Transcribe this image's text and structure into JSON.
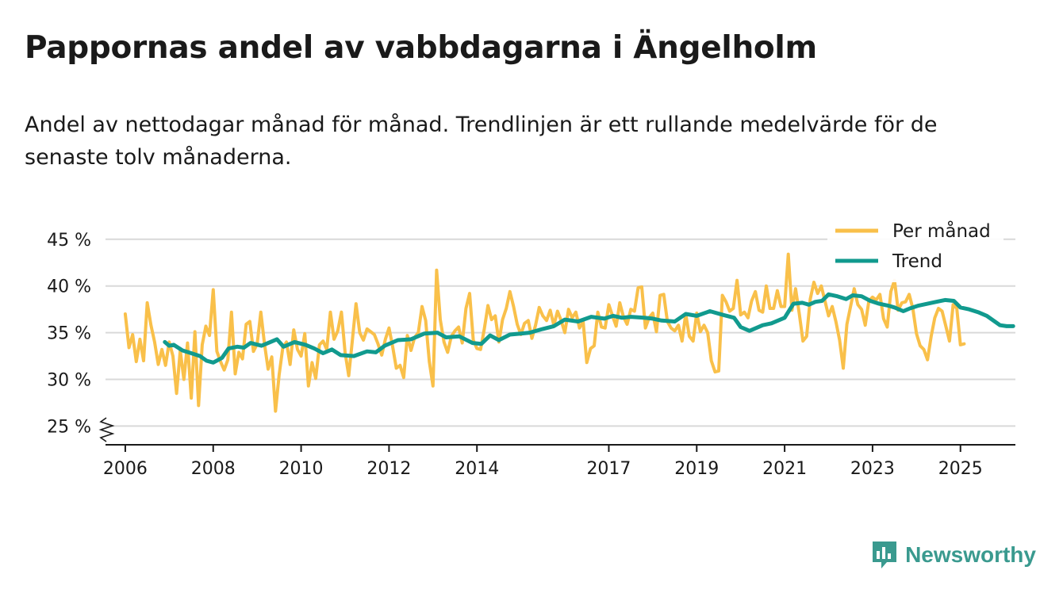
{
  "header": {
    "title": "Pappornas andel av vabbdagarna i Ängelholm",
    "subtitle": "Andel av nettodagar månad för månad. Trendlinjen är ett rullande medelvärde för de senaste tolv månaderna."
  },
  "brand": {
    "name": "Newsworthy",
    "icon": "newsworthy-logo-icon",
    "color": "#3a9a8f"
  },
  "colors": {
    "monthly": "#f9c04a",
    "trend": "#119a8e",
    "grid": "#d9d9d9",
    "axis": "#1a1a1a"
  },
  "chart_data": {
    "type": "line",
    "title": "Pappornas andel av vabbdagarna i Ängelholm",
    "ylabel": "",
    "xlabel": "",
    "ylim": [
      23,
      46
    ],
    "y_axis_break": true,
    "y_ticks": [
      25,
      30,
      35,
      40,
      45
    ],
    "y_tick_labels": [
      "25 %",
      "30 %",
      "35 %",
      "40 %",
      "45 %"
    ],
    "x_range": [
      2005.55,
      2026.25
    ],
    "x_ticks": [
      2006,
      2008,
      2010,
      2012,
      2014,
      2017,
      2019,
      2021,
      2023,
      2025
    ],
    "x_tick_labels": [
      "2006",
      "2008",
      "2010",
      "2012",
      "2014",
      "2017",
      "2019",
      "2021",
      "2023",
      "2025"
    ],
    "grid": "horizontal",
    "legend": {
      "position": "top-right",
      "entries": [
        "Per månad",
        "Trend"
      ]
    },
    "series": [
      {
        "name": "Per månad",
        "x_start": 2006.0,
        "x_step": 0.0833333,
        "values": [
          37.0,
          33.4,
          34.8,
          31.9,
          34.3,
          32.0,
          38.2,
          35.8,
          34.0,
          31.6,
          33.2,
          31.5,
          34.0,
          32.5,
          28.5,
          33.1,
          30.0,
          33.9,
          28.0,
          35.1,
          27.2,
          33.7,
          35.7,
          34.7,
          39.6,
          33.0,
          31.9,
          31.0,
          32.1,
          37.2,
          30.6,
          32.9,
          32.2,
          35.9,
          36.2,
          33.0,
          33.8,
          37.2,
          33.8,
          31.1,
          32.4,
          26.6,
          30.5,
          33.4,
          34.0,
          31.6,
          35.3,
          33.2,
          32.5,
          34.9,
          29.3,
          31.8,
          30.1,
          33.7,
          34.1,
          33.2,
          37.2,
          34.3,
          35.2,
          37.2,
          32.9,
          30.4,
          34.2,
          38.1,
          35.0,
          34.2,
          35.4,
          35.1,
          34.8,
          33.8,
          32.6,
          34.3,
          35.5,
          33.5,
          31.2,
          31.5,
          30.2,
          34.7,
          33.1,
          34.5,
          35.0,
          37.8,
          36.3,
          31.9,
          29.3,
          41.7,
          36.4,
          34.0,
          32.9,
          34.6,
          35.2,
          35.6,
          33.9,
          37.6,
          39.2,
          34.2,
          33.3,
          33.2,
          35.4,
          37.9,
          36.4,
          36.8,
          34.0,
          36.4,
          37.6,
          39.4,
          37.8,
          35.9,
          34.8,
          36.0,
          36.3,
          34.4,
          35.8,
          37.7,
          36.8,
          36.3,
          37.4,
          35.8,
          37.3,
          36.3,
          35.0,
          37.5,
          36.6,
          37.2,
          35.5,
          36.2,
          31.8,
          33.3,
          33.6,
          37.2,
          35.6,
          35.5,
          38.0,
          36.8,
          35.7,
          38.2,
          36.7,
          35.9,
          37.5,
          37.3,
          39.8,
          39.9,
          35.5,
          36.6,
          37.1,
          35.1,
          39.0,
          39.1,
          36.2,
          35.5,
          35.2,
          35.8,
          34.1,
          37.0,
          34.6,
          34.1,
          37.1,
          35.1,
          35.8,
          35.0,
          32.0,
          30.8,
          30.9,
          39.0,
          38.3,
          37.3,
          37.6,
          40.6,
          36.9,
          37.2,
          36.6,
          38.4,
          39.4,
          37.4,
          37.2,
          40.0,
          37.6,
          37.6,
          39.5,
          37.8,
          37.8,
          43.4,
          37.4,
          39.7,
          37.0,
          34.1,
          34.6,
          38.6,
          40.4,
          39.2,
          40.0,
          38.4,
          36.8,
          37.8,
          36.2,
          34.2,
          31.2,
          35.9,
          37.8,
          39.7,
          38.0,
          37.5,
          35.8,
          38.4,
          38.8,
          38.5,
          39.1,
          36.5,
          35.6,
          39.4,
          40.6,
          37.4,
          38.2,
          38.3,
          39.1,
          37.6,
          34.9,
          33.6,
          33.2,
          32.1,
          34.6,
          36.6,
          37.6,
          37.3,
          35.7,
          34.1,
          38.0,
          37.6,
          33.7,
          33.8
        ]
      },
      {
        "name": "Trend",
        "points": [
          [
            2006.9,
            34.0
          ],
          [
            2007.0,
            33.6
          ],
          [
            2007.1,
            33.7
          ],
          [
            2007.3,
            33.1
          ],
          [
            2007.5,
            32.8
          ],
          [
            2007.7,
            32.5
          ],
          [
            2007.85,
            32.0
          ],
          [
            2008.0,
            31.8
          ],
          [
            2008.2,
            32.3
          ],
          [
            2008.35,
            33.3
          ],
          [
            2008.55,
            33.5
          ],
          [
            2008.7,
            33.4
          ],
          [
            2008.85,
            33.9
          ],
          [
            2009.1,
            33.6
          ],
          [
            2009.3,
            34.0
          ],
          [
            2009.45,
            34.3
          ],
          [
            2009.6,
            33.5
          ],
          [
            2009.85,
            34.0
          ],
          [
            2010.1,
            33.7
          ],
          [
            2010.3,
            33.3
          ],
          [
            2010.5,
            32.8
          ],
          [
            2010.7,
            33.2
          ],
          [
            2010.9,
            32.6
          ],
          [
            2011.2,
            32.5
          ],
          [
            2011.5,
            33.0
          ],
          [
            2011.7,
            32.9
          ],
          [
            2011.9,
            33.6
          ],
          [
            2012.2,
            34.2
          ],
          [
            2012.5,
            34.3
          ],
          [
            2012.8,
            34.9
          ],
          [
            2013.1,
            35.0
          ],
          [
            2013.3,
            34.5
          ],
          [
            2013.6,
            34.6
          ],
          [
            2013.9,
            33.9
          ],
          [
            2014.1,
            33.8
          ],
          [
            2014.3,
            34.7
          ],
          [
            2014.5,
            34.2
          ],
          [
            2014.75,
            34.8
          ],
          [
            2015.0,
            34.9
          ],
          [
            2015.2,
            35.0
          ],
          [
            2015.5,
            35.4
          ],
          [
            2015.75,
            35.7
          ],
          [
            2016.0,
            36.4
          ],
          [
            2016.3,
            36.2
          ],
          [
            2016.6,
            36.7
          ],
          [
            2016.9,
            36.5
          ],
          [
            2017.1,
            36.8
          ],
          [
            2017.3,
            36.6
          ],
          [
            2017.5,
            36.7
          ],
          [
            2017.8,
            36.6
          ],
          [
            2018.0,
            36.5
          ],
          [
            2018.2,
            36.3
          ],
          [
            2018.5,
            36.2
          ],
          [
            2018.75,
            37.0
          ],
          [
            2019.0,
            36.8
          ],
          [
            2019.3,
            37.3
          ],
          [
            2019.6,
            36.9
          ],
          [
            2019.85,
            36.6
          ],
          [
            2020.0,
            35.6
          ],
          [
            2020.2,
            35.2
          ],
          [
            2020.5,
            35.8
          ],
          [
            2020.7,
            36.0
          ],
          [
            2021.0,
            36.6
          ],
          [
            2021.2,
            38.1
          ],
          [
            2021.4,
            38.2
          ],
          [
            2021.55,
            38.0
          ],
          [
            2021.7,
            38.3
          ],
          [
            2021.85,
            38.4
          ],
          [
            2022.0,
            39.1
          ],
          [
            2022.2,
            38.9
          ],
          [
            2022.4,
            38.6
          ],
          [
            2022.55,
            39.0
          ],
          [
            2022.75,
            38.9
          ],
          [
            2022.95,
            38.4
          ],
          [
            2023.15,
            38.1
          ],
          [
            2023.35,
            37.9
          ],
          [
            2023.5,
            37.7
          ],
          [
            2023.7,
            37.3
          ],
          [
            2023.85,
            37.6
          ],
          [
            2024.05,
            37.9
          ],
          [
            2024.25,
            38.1
          ],
          [
            2024.45,
            38.3
          ],
          [
            2024.65,
            38.5
          ],
          [
            2024.85,
            38.4
          ],
          [
            2025.0,
            37.7
          ],
          [
            2025.2,
            37.5
          ],
          [
            2025.4,
            37.2
          ],
          [
            2025.6,
            36.8
          ],
          [
            2025.75,
            36.3
          ],
          [
            2025.9,
            35.8
          ],
          [
            2026.05,
            35.7
          ],
          [
            2026.2,
            35.7
          ]
        ]
      }
    ]
  }
}
